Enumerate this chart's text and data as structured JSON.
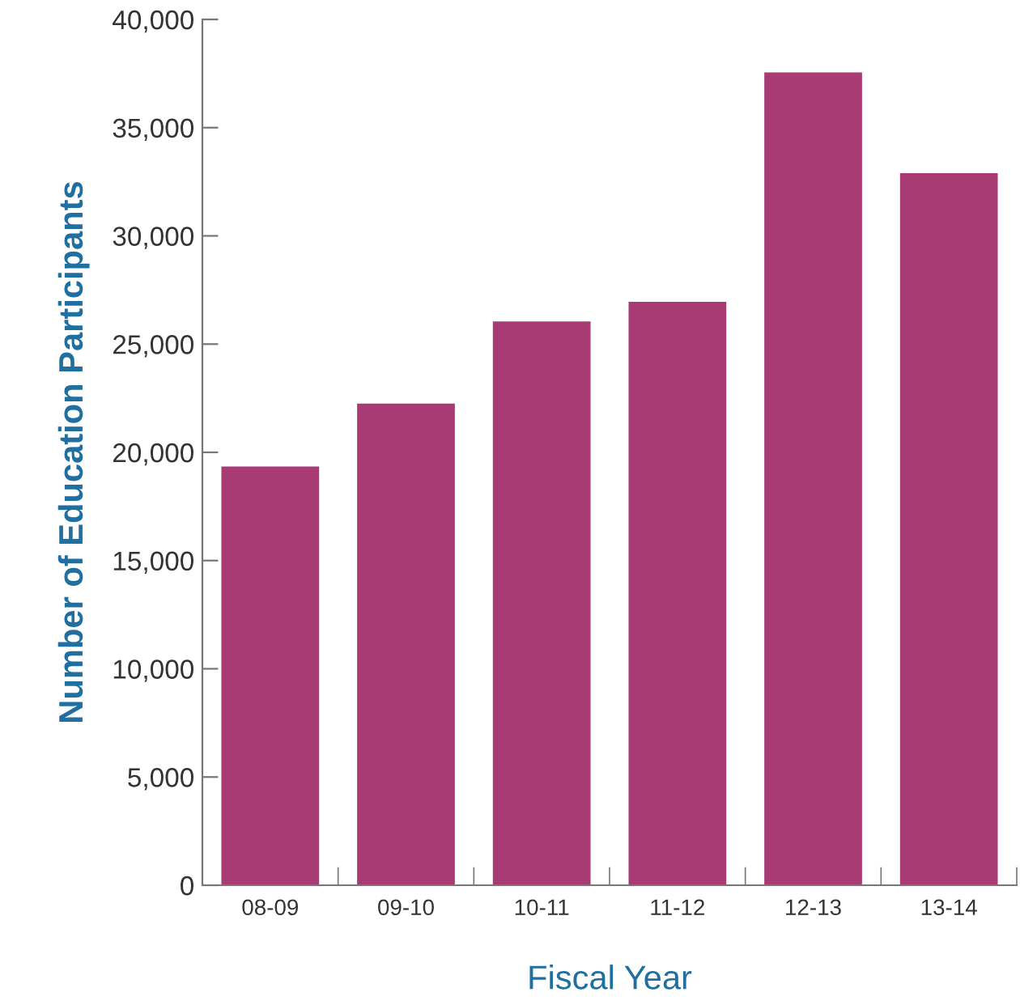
{
  "chart_data": {
    "type": "bar",
    "xlabel": "Fiscal Year",
    "ylabel": "Number of Education Participants",
    "categories": [
      "08-09",
      "09-10",
      "10-11",
      "11-12",
      "12-13",
      "13-14"
    ],
    "values": [
      19350,
      22250,
      26050,
      26950,
      37550,
      32900
    ],
    "color": "#a83a74",
    "ylim": [
      0,
      40000
    ],
    "yticks": [
      {
        "value": 0,
        "label": "0"
      },
      {
        "value": 5000,
        "label": "5,000"
      },
      {
        "value": 10000,
        "label": "10,000"
      },
      {
        "value": 15000,
        "label": "15,000"
      },
      {
        "value": 20000,
        "label": "20,000"
      },
      {
        "value": 25000,
        "label": "25,000"
      },
      {
        "value": 30000,
        "label": "30,000"
      },
      {
        "value": 35000,
        "label": "35,000"
      },
      {
        "value": 40000,
        "label": "40,000"
      }
    ],
    "grid": false
  }
}
